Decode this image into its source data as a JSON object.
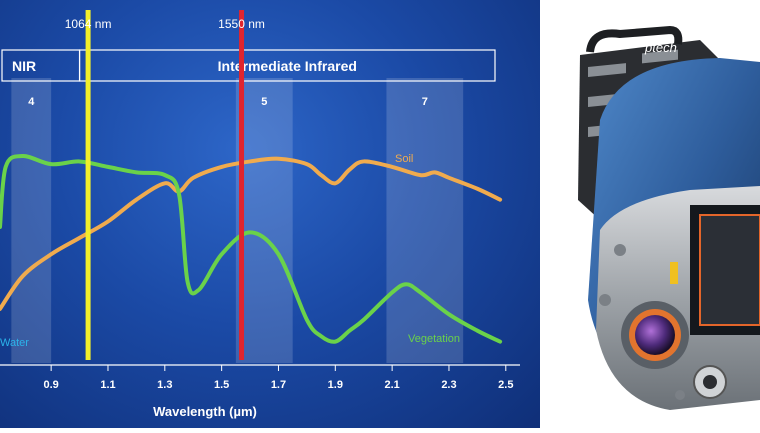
{
  "chart_data": {
    "type": "line",
    "xlabel": "Wavelength (µm)",
    "xlim": [
      0.72,
      2.55
    ],
    "ylim": [
      0,
      100
    ],
    "x_ticks": [
      "0.9",
      "1.1",
      "1.3",
      "1.5",
      "1.7",
      "1.9",
      "2.1",
      "2.3",
      "2.5"
    ],
    "x_tick_values": [
      0.9,
      1.1,
      1.3,
      1.5,
      1.7,
      1.9,
      2.1,
      2.3,
      2.5
    ],
    "regions": [
      {
        "label": "NIR",
        "from": 0.72,
        "to": 1.0
      },
      {
        "label": "Intermediate Infrared",
        "from": 1.0,
        "to": 2.5
      }
    ],
    "bands": [
      {
        "label": "4",
        "from": 0.76,
        "to": 0.9
      },
      {
        "label": "5",
        "from": 1.55,
        "to": 1.75
      },
      {
        "label": "7",
        "from": 2.08,
        "to": 2.35
      }
    ],
    "markers": [
      {
        "label": "1064 nm",
        "x": 1.03,
        "color": "#f2ef2a"
      },
      {
        "label": "1550 nm",
        "x": 1.57,
        "color": "#e0252e"
      }
    ],
    "series": [
      {
        "name": "Soil",
        "color": "#f0ab4e",
        "x": [
          0.72,
          0.8,
          0.9,
          1.0,
          1.1,
          1.2,
          1.3,
          1.35,
          1.4,
          1.5,
          1.6,
          1.7,
          1.8,
          1.85,
          1.9,
          1.95,
          2.0,
          2.1,
          2.2,
          2.25,
          2.3,
          2.4,
          2.48
        ],
        "y": [
          18,
          30,
          38,
          44,
          50,
          58,
          64,
          61,
          66,
          70,
          72,
          73,
          71,
          67,
          64,
          69,
          72,
          70,
          67,
          68,
          66,
          62,
          58
        ]
      },
      {
        "name": "Vegetation",
        "color": "#6ad24a",
        "x": [
          0.72,
          0.74,
          0.8,
          0.9,
          1.0,
          1.1,
          1.2,
          1.3,
          1.35,
          1.38,
          1.42,
          1.5,
          1.6,
          1.7,
          1.8,
          1.85,
          1.9,
          1.95,
          2.0,
          2.1,
          2.15,
          2.2,
          2.3,
          2.4,
          2.48
        ],
        "y": [
          48,
          70,
          74,
          71,
          72,
          70,
          68,
          67,
          60,
          28,
          25,
          38,
          46,
          38,
          14,
          8,
          6,
          10,
          14,
          24,
          27,
          24,
          16,
          10,
          6
        ]
      },
      {
        "name": "Water",
        "color": "#2bb3ea",
        "x": [],
        "y": []
      }
    ]
  },
  "photo": {
    "brand": "ptech"
  }
}
